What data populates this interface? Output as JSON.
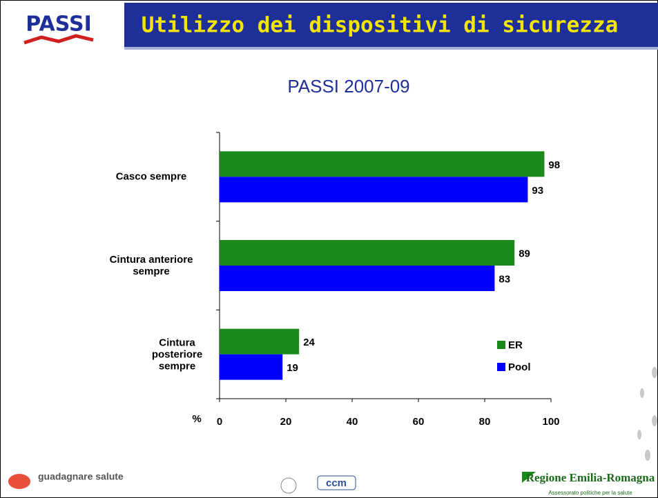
{
  "logo": "PASSI",
  "footer": {
    "left": "guadagnare salute",
    "center": "ccm",
    "right": "Regione Emilia-Romagna",
    "right_sub": "Assessorato politiche per la salute"
  },
  "chart_data": {
    "type": "bar",
    "orientation": "horizontal",
    "title": "Utilizzo dei dispositivi di sicurezza",
    "subtitle": "PASSI 2007-09",
    "x_label": "%",
    "categories": [
      "Casco sempre",
      "Cintura anteriore sempre",
      "Cintura posteriore sempre"
    ],
    "series": [
      {
        "name": "ER",
        "color": "#1a8a1a",
        "values": [
          98,
          89,
          24
        ]
      },
      {
        "name": "Pool",
        "color": "#0000ff",
        "values": [
          93,
          83,
          19
        ]
      }
    ],
    "xlim": [
      0,
      100
    ],
    "xticks": [
      0,
      20,
      40,
      60,
      80,
      100
    ],
    "grid": false,
    "legend": "lower right"
  }
}
